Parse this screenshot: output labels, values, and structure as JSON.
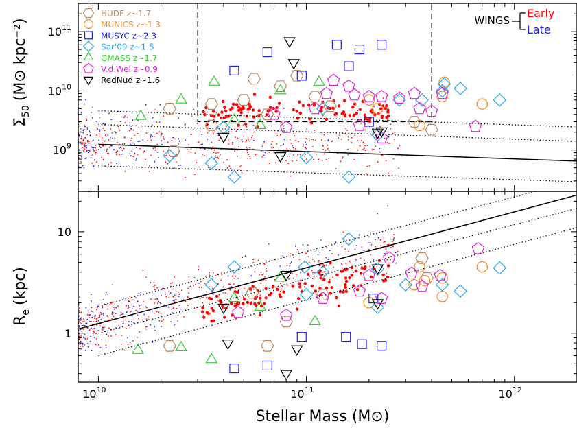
{
  "chart_data": [
    {
      "panel": "top",
      "type": "scatter",
      "ylabel_main": "Σ",
      "ylabel_sub": "50",
      "ylabel_unit": "(M⊙ kpc⁻²)",
      "x_scale": "log",
      "y_scale": "log",
      "xlim": [
        8000000000.0,
        2000000000000.0
      ],
      "ylim": [
        200000000.0,
        300000000000.0
      ],
      "yticks": [
        {
          "value": 1000000000.0,
          "base": "10",
          "exp": "9"
        },
        {
          "value": 10000000000.0,
          "base": "10",
          "exp": "10"
        },
        {
          "value": 100000000000.0,
          "base": "10",
          "exp": "11"
        }
      ],
      "relation_line": {
        "x": [
          10000000000.0,
          2000000000000.0
        ],
        "y": [
          1250000000.0,
          650000000.0
        ]
      },
      "dotted_lines": [
        {
          "x": [
            10000000000.0,
            2000000000000.0
          ],
          "y": [
            4600000000.0,
            2450000000.0
          ]
        },
        {
          "x": [
            10000000000.0,
            2000000000000.0
          ],
          "y": [
            2700000000.0,
            1400000000.0
          ]
        },
        {
          "x": [
            10000000000.0,
            2000000000000.0
          ],
          "y": [
            540000000.0,
            290000000.0
          ]
        }
      ],
      "highlight_box": {
        "x": [
          30000000000.0,
          400000000000.0
        ],
        "y": [
          3000000000.0,
          300000000000.0
        ]
      },
      "series": [
        {
          "name": "HUDF z~1.7",
          "marker": "hexagon",
          "color": "#b8865c",
          "points": [
            [
              56000000000.0,
              16000000000.0
            ],
            [
              75000000000.0,
              12000000000.0
            ],
            [
              90000000000.0,
              18000000000.0
            ],
            [
              22000000000.0,
              5000000000.0
            ],
            [
              35000000000.0,
              6000000000.0
            ],
            [
              50000000000.0,
              7000000000.0
            ],
            [
              65000000000.0,
              4000000000.0
            ],
            [
              110000000000.0,
              8000000000.0
            ],
            [
              400000000000.0,
              2200000000.0
            ],
            [
              23000000000.0,
              950000000.0
            ],
            [
              35000000000.0,
              2600000000.0
            ],
            [
              130000000000.0,
              5500000000.0
            ],
            [
              330000000000.0,
              3000000000.0
            ]
          ]
        },
        {
          "name": "MUNICS z~1.3",
          "marker": "circle",
          "color": "#f08a24",
          "points": [
            [
              200000000000.0,
              7000000000.0
            ],
            [
              460000000000.0,
              14000000000.0
            ],
            [
              700000000000.0,
              6000000000.0
            ],
            [
              350000000000.0,
              2600000000.0
            ],
            [
              450000000000.0,
              8000000000.0
            ],
            [
              220000000000.0,
              5000000000.0
            ]
          ]
        },
        {
          "name": "MUSYC z~2.3",
          "marker": "square",
          "color": "#2020e0",
          "points": [
            [
              45000000000.0,
              22000000000.0
            ],
            [
              65000000000.0,
              45000000000.0
            ],
            [
              140000000000.0,
              60000000000.0
            ],
            [
              160000000000.0,
              26000000000.0
            ],
            [
              180000000000.0,
              50000000000.0
            ],
            [
              230000000000.0,
              60000000000.0
            ],
            [
              95000000000.0,
              18000000000.0
            ],
            [
              200000000000.0,
              3000000000.0
            ]
          ]
        },
        {
          "name": "Sar'09 z~1.5",
          "marker": "diamond",
          "color": "#20a8e8",
          "points": [
            [
              22000000000.0,
              800000000.0
            ],
            [
              35000000000.0,
              600000000.0
            ],
            [
              45000000000.0,
              350000000.0
            ],
            [
              100000000000.0,
              750000000.0
            ],
            [
              160000000000.0,
              350000000.0
            ],
            [
              220000000000.0,
              1800000000.0
            ],
            [
              280000000000.0,
              7000000000.0
            ],
            [
              360000000000.0,
              7000000000.0
            ],
            [
              450000000000.0,
              10000000000.0
            ],
            [
              550000000000.0,
              11000000000.0
            ],
            [
              850000000000.0,
              7000000000.0
            ],
            [
              460000000000.0,
              13000000000.0
            ],
            [
              120000000000.0,
              5000000000.0
            ],
            [
              40000000000.0,
              2400000000.0
            ]
          ]
        },
        {
          "name": "GMASS z~1.7",
          "marker": "triangle-up",
          "color": "#33cc33",
          "points": [
            [
              36000000000.0,
              14000000000.0
            ],
            [
              115000000000.0,
              14000000000.0
            ],
            [
              16000000000.0,
              3700000000.0
            ],
            [
              25000000000.0,
              7000000000.0
            ],
            [
              75000000000.0,
              10000000000.0
            ],
            [
              60000000000.0,
              2600000000.0
            ],
            [
              45000000000.0,
              3200000000.0
            ]
          ]
        },
        {
          "name": "V.d.Wel z~0.9",
          "marker": "pentagon",
          "color": "#e020d8",
          "points": [
            [
              125000000000.0,
              9000000000.0
            ],
            [
              135000000000.0,
              15000000000.0
            ],
            [
              170000000000.0,
              8500000000.0
            ],
            [
              200000000000.0,
              8000000000.0
            ],
            [
              230000000000.0,
              8000000000.0
            ],
            [
              280000000000.0,
              7500000000.0
            ],
            [
              330000000000.0,
              9000000000.0
            ],
            [
              400000000000.0,
              4500000000.0
            ],
            [
              450000000000.0,
              9000000000.0
            ],
            [
              650000000000.0,
              2500000000.0
            ],
            [
              80000000000.0,
              2400000000.0
            ],
            [
              110000000000.0,
              5000000000.0
            ],
            [
              180000000000.0,
              2600000000.0
            ],
            [
              230000000000.0,
              1600000000.0
            ],
            [
              350000000000.0,
              5000000000.0
            ],
            [
              160000000000.0,
              12000000000.0
            ],
            [
              70000000000.0,
              4000000000.0
            ]
          ]
        },
        {
          "name": "RedNud z~1.6",
          "marker": "triangle-down",
          "color": "#000000",
          "points": [
            [
              83000000000.0,
              70000000000.0
            ],
            [
              87000000000.0,
              30000000000.0
            ],
            [
              40000000000.0,
              1700000000.0
            ],
            [
              75000000000.0,
              800000000.0
            ],
            [
              220000000000.0,
              2000000000.0
            ],
            [
              230000000000.0,
              2100000000.0
            ]
          ]
        }
      ]
    },
    {
      "panel": "bottom",
      "type": "scatter",
      "ylabel_main": "R",
      "ylabel_sub": "e",
      "ylabel_unit": "(kpc)",
      "xlabel": "Stellar Mass (M⊙)",
      "x_scale": "log",
      "y_scale": "log",
      "xlim": [
        8000000000.0,
        2000000000000.0
      ],
      "ylim": [
        0.33,
        25
      ],
      "yticks": [
        {
          "value": 1,
          "label": "1"
        },
        {
          "value": 10,
          "label": "10"
        }
      ],
      "xticks": [
        {
          "value": 10000000000.0,
          "base": "10",
          "exp": "10"
        },
        {
          "value": 100000000000.0,
          "base": "10",
          "exp": "11"
        },
        {
          "value": 1000000000000.0,
          "base": "10",
          "exp": "12"
        }
      ],
      "relation_line": {
        "x": [
          8000000000.0,
          2000000000000.0
        ],
        "y": [
          1.1,
          23
        ]
      },
      "dotted_lines": [
        {
          "x": [
            10000000000.0,
            2000000000000.0
          ],
          "y": [
            1.85,
            32
          ]
        },
        {
          "x": [
            10000000000.0,
            2000000000000.0
          ],
          "y": [
            1.0,
            17
          ]
        },
        {
          "x": [
            10000000000.0,
            2000000000000.0
          ],
          "y": [
            0.6,
            11
          ]
        }
      ],
      "series": [
        {
          "name": "HUDF z~1.7",
          "marker": "hexagon",
          "color": "#b8865c",
          "points": [
            [
              22000000000.0,
              0.75
            ],
            [
              65000000000.0,
              0.75
            ],
            [
              360000000000.0,
              5.5
            ],
            [
              55000000000.0,
              2.5
            ],
            [
              120000000000.0,
              2.4
            ],
            [
              80000000000.0,
              1.3
            ],
            [
              380000000000.0,
              3.5
            ]
          ]
        },
        {
          "name": "MUNICS z~1.3",
          "marker": "circle",
          "color": "#f08a24",
          "points": [
            [
              350000000000.0,
              4.5
            ],
            [
              450000000000.0,
              3.5
            ],
            [
              370000000000.0,
              3.3
            ],
            [
              450000000000.0,
              2.3
            ],
            [
              700000000000.0,
              4.5
            ],
            [
              200000000000.0,
              2
            ],
            [
              330000000000.0,
              3
            ]
          ]
        },
        {
          "name": "MUSYC z~2.3",
          "marker": "square",
          "color": "#2020e0",
          "points": [
            [
              45000000000.0,
              0.45
            ],
            [
              65000000000.0,
              0.48
            ],
            [
              95000000000.0,
              0.92
            ],
            [
              155000000000.0,
              0.92
            ],
            [
              185000000000.0,
              0.78
            ],
            [
              230000000000.0,
              0.75
            ],
            [
              210000000000.0,
              2.2
            ]
          ]
        },
        {
          "name": "Sar'09 z~1.5",
          "marker": "diamond",
          "color": "#20a8e8",
          "points": [
            [
              35000000000.0,
              3
            ],
            [
              45000000000.0,
              4.5
            ],
            [
              98000000000.0,
              4.5
            ],
            [
              120000000000.0,
              4
            ],
            [
              160000000000.0,
              8.5
            ],
            [
              220000000000.0,
              4.3
            ],
            [
              300000000000.0,
              3
            ],
            [
              450000000000.0,
              3
            ],
            [
              550000000000.0,
              2.6
            ],
            [
              850000000000.0,
              4.4
            ],
            [
              100000000000.0,
              2.4
            ],
            [
              220000000000.0,
              1.8
            ]
          ]
        },
        {
          "name": "GMASS z~1.7",
          "marker": "triangle-up",
          "color": "#33cc33",
          "points": [
            [
              15500000000.0,
              0.68
            ],
            [
              25000000000.0,
              0.72
            ],
            [
              35000000000.0,
              0.55
            ],
            [
              110000000000.0,
              1.3
            ],
            [
              60000000000.0,
              1.8
            ],
            [
              45000000000.0,
              2.2
            ],
            [
              75000000000.0,
              3.5
            ]
          ]
        },
        {
          "name": "V.d.Wel z~0.9",
          "marker": "pentagon",
          "color": "#e020d8",
          "points": [
            [
              200000000000.0,
              3.7
            ],
            [
              320000000000.0,
              3.9
            ],
            [
              440000000000.0,
              3.7
            ],
            [
              670000000000.0,
              6.8
            ],
            [
              120000000000.0,
              2.2
            ],
            [
              180000000000.0,
              2.6
            ],
            [
              230000000000.0,
              2.2
            ],
            [
              47000000000.0,
              1.6
            ],
            [
              80000000000.0,
              1.5
            ],
            [
              250000000000.0,
              5.5
            ],
            [
              360000000000.0,
              2.9
            ]
          ]
        },
        {
          "name": "RedNud z~1.6",
          "marker": "triangle-down",
          "color": "#000000",
          "points": [
            [
              42000000000.0,
              0.8
            ],
            [
              90000000000.0,
              0.7
            ],
            [
              80000000000.0,
              0.4
            ],
            [
              80000000000.0,
              3.8
            ],
            [
              220000000000.0,
              4.4
            ],
            [
              220000000000.0,
              2
            ],
            [
              40000000000.0,
              1.8
            ]
          ]
        }
      ]
    }
  ],
  "legend": {
    "items": [
      "HUDF z~1.7",
      "MUNICS z~1.3",
      "MUSYC z~2.3",
      "Sar'09 z~1.5",
      "GMASS z~1.7",
      "V.d.Wel z~0.9",
      "RedNud z~1.6"
    ],
    "wings_label": "WINGS",
    "wings_early": "Early",
    "wings_late": "Late",
    "colors": {
      "early": "#ff0000",
      "late": "#2020e0"
    }
  }
}
